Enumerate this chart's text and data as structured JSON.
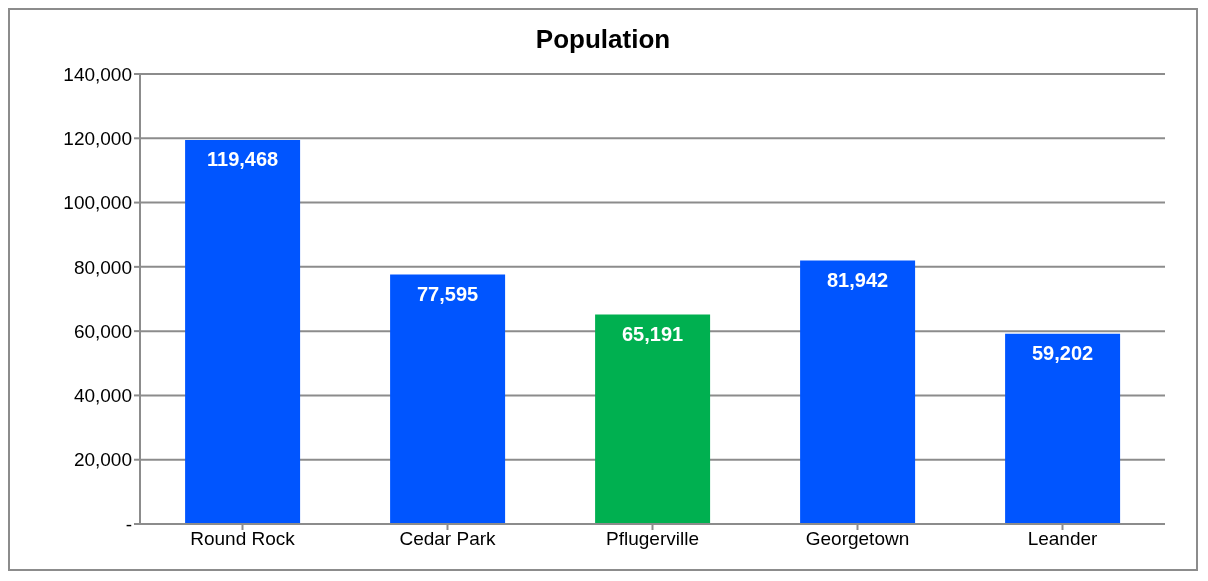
{
  "chart_data": {
    "type": "bar",
    "title": "Population",
    "categories": [
      "Round Rock",
      "Cedar Park",
      "Pflugerville",
      "Georgetown",
      "Leander"
    ],
    "values": [
      119468,
      77595,
      65191,
      81942,
      59202
    ],
    "colors": [
      "#0055ff",
      "#0055ff",
      "#00b050",
      "#0055ff",
      "#0055ff"
    ],
    "value_labels": [
      "119,468",
      "77,595",
      "65,191",
      "81,942",
      "59,202"
    ],
    "ylim": [
      0,
      140000
    ],
    "yticks": [
      {
        "value": 0,
        "label": "-"
      },
      {
        "value": 20000,
        "label": "20,000"
      },
      {
        "value": 40000,
        "label": "40,000"
      },
      {
        "value": 60000,
        "label": "60,000"
      },
      {
        "value": 80000,
        "label": "80,000"
      },
      {
        "value": 100000,
        "label": "100,000"
      },
      {
        "value": 120000,
        "label": "120,000"
      },
      {
        "value": 140000,
        "label": "140,000"
      }
    ],
    "grid": "y",
    "legend": false
  }
}
